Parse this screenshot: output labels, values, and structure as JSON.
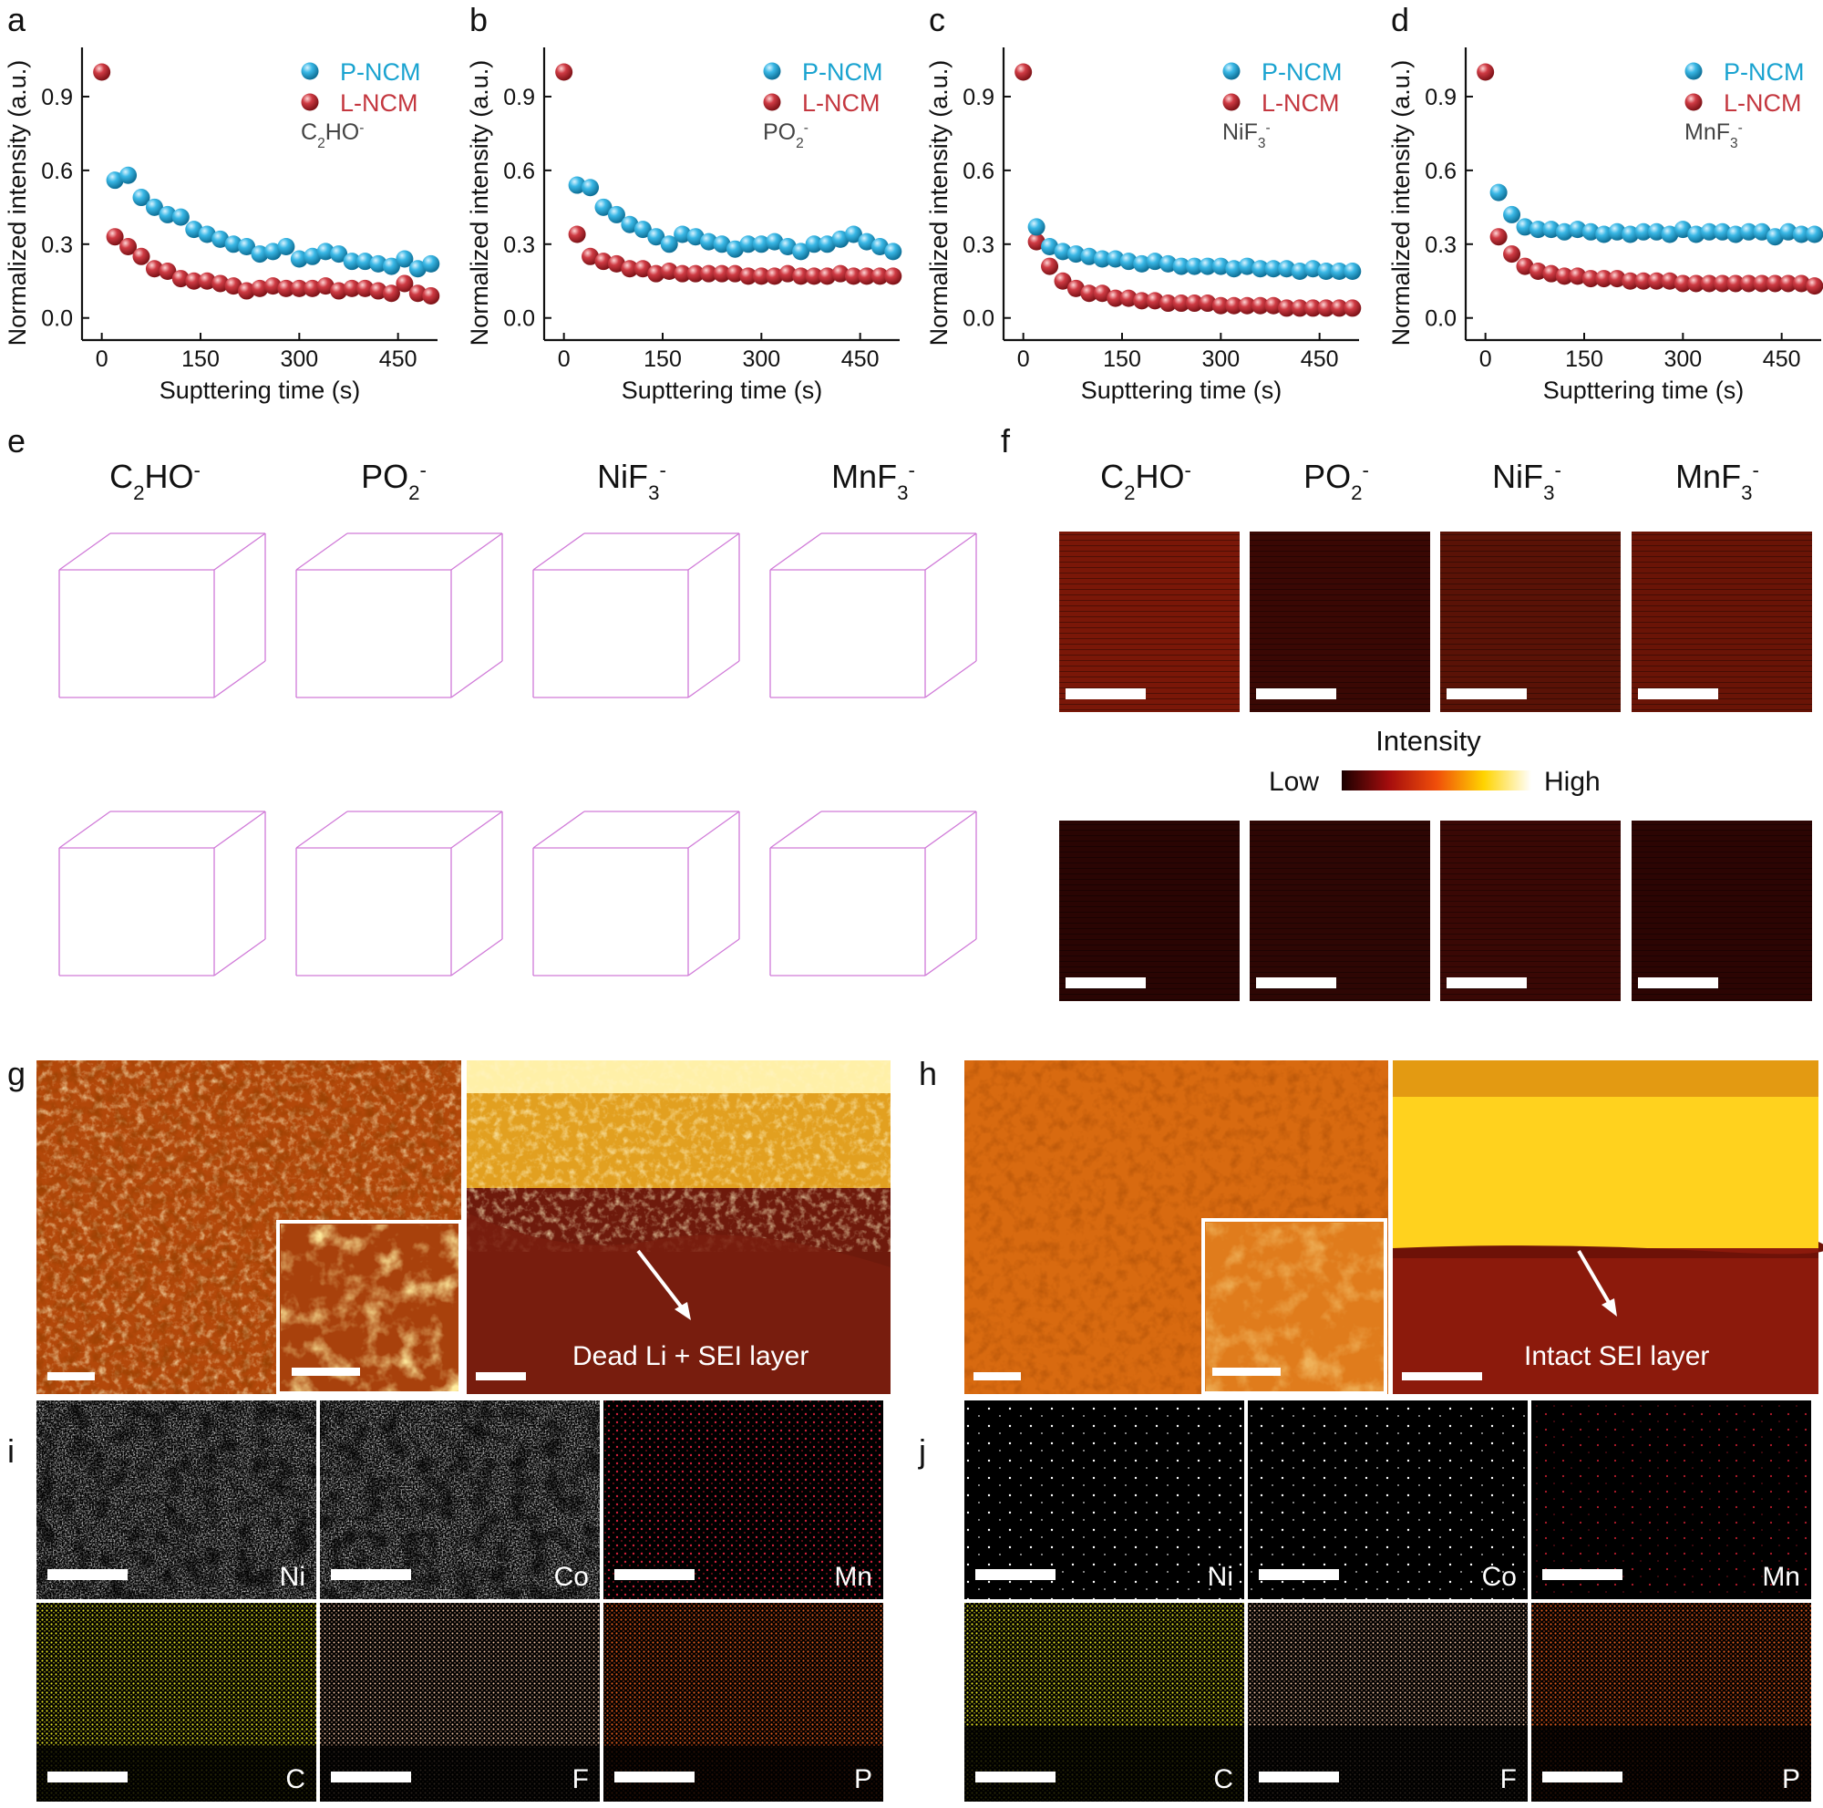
{
  "panel_letters": [
    "a",
    "b",
    "c",
    "d",
    "e",
    "f",
    "g",
    "h",
    "i",
    "j"
  ],
  "colors": {
    "p_ncm": "#1aa3d0",
    "l_ncm": "#c4373f"
  },
  "chart_data": [
    {
      "type": "scatter",
      "panel": "a",
      "ion": "C2HO-",
      "ion_parts": {
        "base": "C",
        "sub": "2",
        "rest": "HO",
        "sup": "-"
      },
      "xlabel": "Supttering time (s)",
      "ylabel": "Normalized intensity (a.u.)",
      "xlim": [
        -30,
        510
      ],
      "ylim": [
        -0.09,
        1.1
      ],
      "xticks": [
        0,
        150,
        300,
        450
      ],
      "xtick_labels": [
        "0",
        "150",
        "300",
        "450"
      ],
      "yticks": [
        0,
        0.3,
        0.6,
        0.9
      ],
      "ytick_labels": [
        "0.0",
        "0.3",
        "0.6",
        "0.9"
      ],
      "legend": [
        "P-NCM",
        "L-NCM"
      ],
      "series": [
        {
          "name": "P-NCM",
          "x": [
            20,
            40,
            60,
            80,
            100,
            120,
            140,
            160,
            180,
            200,
            220,
            240,
            260,
            280,
            300,
            320,
            340,
            360,
            380,
            400,
            420,
            440,
            460,
            480,
            500
          ],
          "y": [
            0.56,
            0.58,
            0.49,
            0.45,
            0.42,
            0.41,
            0.36,
            0.34,
            0.32,
            0.3,
            0.29,
            0.26,
            0.27,
            0.29,
            0.24,
            0.25,
            0.27,
            0.26,
            0.23,
            0.23,
            0.22,
            0.21,
            0.24,
            0.2,
            0.22
          ]
        },
        {
          "name": "L-NCM",
          "x": [
            0,
            20,
            40,
            60,
            80,
            100,
            120,
            140,
            160,
            180,
            200,
            220,
            240,
            260,
            280,
            300,
            320,
            340,
            360,
            380,
            400,
            420,
            440,
            460,
            480,
            500
          ],
          "y": [
            1.0,
            0.33,
            0.29,
            0.25,
            0.2,
            0.19,
            0.16,
            0.15,
            0.15,
            0.14,
            0.13,
            0.11,
            0.12,
            0.13,
            0.12,
            0.12,
            0.12,
            0.13,
            0.11,
            0.12,
            0.12,
            0.11,
            0.1,
            0.14,
            0.1,
            0.09
          ]
        }
      ]
    },
    {
      "type": "scatter",
      "panel": "b",
      "ion": "PO2-",
      "ion_parts": {
        "base": "PO",
        "sub": "2",
        "rest": "",
        "sup": "-"
      },
      "xlabel": "Supttering time (s)",
      "ylabel": "Normalized intensity (a.u.)",
      "xlim": [
        -30,
        510
      ],
      "ylim": [
        -0.09,
        1.1
      ],
      "xticks": [
        0,
        150,
        300,
        450
      ],
      "xtick_labels": [
        "0",
        "150",
        "300",
        "450"
      ],
      "yticks": [
        0,
        0.3,
        0.6,
        0.9
      ],
      "ytick_labels": [
        "0.0",
        "0.3",
        "0.6",
        "0.9"
      ],
      "legend": [
        "P-NCM",
        "L-NCM"
      ],
      "series": [
        {
          "name": "P-NCM",
          "x": [
            20,
            40,
            60,
            80,
            100,
            120,
            140,
            160,
            180,
            200,
            220,
            240,
            260,
            280,
            300,
            320,
            340,
            360,
            380,
            400,
            420,
            440,
            460,
            480,
            500
          ],
          "y": [
            0.54,
            0.53,
            0.45,
            0.42,
            0.38,
            0.36,
            0.33,
            0.3,
            0.34,
            0.33,
            0.31,
            0.3,
            0.28,
            0.3,
            0.3,
            0.31,
            0.29,
            0.27,
            0.3,
            0.3,
            0.32,
            0.34,
            0.31,
            0.29,
            0.27
          ]
        },
        {
          "name": "L-NCM",
          "x": [
            0,
            20,
            40,
            60,
            80,
            100,
            120,
            140,
            160,
            180,
            200,
            220,
            240,
            260,
            280,
            300,
            320,
            340,
            360,
            380,
            400,
            420,
            440,
            460,
            480,
            500
          ],
          "y": [
            1.0,
            0.34,
            0.25,
            0.23,
            0.22,
            0.2,
            0.2,
            0.18,
            0.19,
            0.18,
            0.18,
            0.18,
            0.18,
            0.18,
            0.17,
            0.17,
            0.17,
            0.18,
            0.17,
            0.17,
            0.17,
            0.18,
            0.17,
            0.17,
            0.17,
            0.17
          ]
        }
      ]
    },
    {
      "type": "scatter",
      "panel": "c",
      "ion": "NiF3-",
      "ion_parts": {
        "base": "NiF",
        "sub": "3",
        "rest": "",
        "sup": "-"
      },
      "xlabel": "Supttering time (s)",
      "ylabel": "Normalized intensity (a.u.)",
      "xlim": [
        -30,
        510
      ],
      "ylim": [
        -0.09,
        1.1
      ],
      "xticks": [
        0,
        150,
        300,
        450
      ],
      "xtick_labels": [
        "0",
        "150",
        "300",
        "450"
      ],
      "yticks": [
        0,
        0.3,
        0.6,
        0.9
      ],
      "ytick_labels": [
        "0.0",
        "0.3",
        "0.6",
        "0.9"
      ],
      "legend": [
        "P-NCM",
        "L-NCM"
      ],
      "series": [
        {
          "name": "P-NCM",
          "x": [
            20,
            40,
            60,
            80,
            100,
            120,
            140,
            160,
            180,
            200,
            220,
            240,
            260,
            280,
            300,
            320,
            340,
            360,
            380,
            400,
            420,
            440,
            460,
            480,
            500
          ],
          "y": [
            0.37,
            0.29,
            0.27,
            0.26,
            0.25,
            0.24,
            0.24,
            0.23,
            0.22,
            0.23,
            0.22,
            0.21,
            0.21,
            0.21,
            0.21,
            0.2,
            0.21,
            0.2,
            0.2,
            0.2,
            0.19,
            0.2,
            0.19,
            0.19,
            0.19
          ]
        },
        {
          "name": "L-NCM",
          "x": [
            0,
            20,
            40,
            60,
            80,
            100,
            120,
            140,
            160,
            180,
            200,
            220,
            240,
            260,
            280,
            300,
            320,
            340,
            360,
            380,
            400,
            420,
            440,
            460,
            480,
            500
          ],
          "y": [
            1.0,
            0.31,
            0.21,
            0.15,
            0.12,
            0.1,
            0.1,
            0.08,
            0.08,
            0.07,
            0.07,
            0.06,
            0.06,
            0.06,
            0.06,
            0.05,
            0.05,
            0.05,
            0.05,
            0.05,
            0.04,
            0.04,
            0.04,
            0.04,
            0.04,
            0.04
          ]
        }
      ]
    },
    {
      "type": "scatter",
      "panel": "d",
      "ion": "MnF3-",
      "ion_parts": {
        "base": "MnF",
        "sub": "3",
        "rest": "",
        "sup": "-"
      },
      "xlabel": "Supttering time (s)",
      "ylabel": "Normalized intensity (a.u.)",
      "xlim": [
        -30,
        510
      ],
      "ylim": [
        -0.09,
        1.1
      ],
      "xticks": [
        0,
        150,
        300,
        450
      ],
      "xtick_labels": [
        "0",
        "150",
        "300",
        "450"
      ],
      "yticks": [
        0,
        0.3,
        0.6,
        0.9
      ],
      "ytick_labels": [
        "0.0",
        "0.3",
        "0.6",
        "0.9"
      ],
      "legend": [
        "P-NCM",
        "L-NCM"
      ],
      "series": [
        {
          "name": "P-NCM",
          "x": [
            20,
            40,
            60,
            80,
            100,
            120,
            140,
            160,
            180,
            200,
            220,
            240,
            260,
            280,
            300,
            320,
            340,
            360,
            380,
            400,
            420,
            440,
            460,
            480,
            500
          ],
          "y": [
            0.51,
            0.42,
            0.37,
            0.36,
            0.36,
            0.35,
            0.36,
            0.35,
            0.34,
            0.35,
            0.34,
            0.35,
            0.35,
            0.34,
            0.36,
            0.34,
            0.35,
            0.35,
            0.34,
            0.35,
            0.35,
            0.33,
            0.35,
            0.34,
            0.34
          ]
        },
        {
          "name": "L-NCM",
          "x": [
            0,
            20,
            40,
            60,
            80,
            100,
            120,
            140,
            160,
            180,
            200,
            220,
            240,
            260,
            280,
            300,
            320,
            340,
            360,
            380,
            400,
            420,
            440,
            460,
            480,
            500
          ],
          "y": [
            1.0,
            0.33,
            0.26,
            0.21,
            0.19,
            0.18,
            0.17,
            0.17,
            0.16,
            0.16,
            0.16,
            0.15,
            0.15,
            0.15,
            0.15,
            0.14,
            0.14,
            0.14,
            0.14,
            0.14,
            0.14,
            0.14,
            0.14,
            0.14,
            0.14,
            0.13
          ]
        }
      ]
    }
  ],
  "panel_e": {
    "labels": [
      {
        "base": "C",
        "sub": "2",
        "rest": "HO",
        "sup": "-"
      },
      {
        "base": "PO",
        "sub": "2",
        "rest": "",
        "sup": "-"
      },
      {
        "base": "NiF",
        "sub": "3",
        "rest": "",
        "sup": "-"
      },
      {
        "base": "MnF",
        "sub": "3",
        "rest": "",
        "sup": "-"
      }
    ],
    "colors": [
      "#7a0d12",
      "#1f2fd0",
      "#c8b22a",
      "#5a0a6e"
    ]
  },
  "panel_f": {
    "labels": [
      {
        "base": "C",
        "sub": "2",
        "rest": "HO",
        "sup": "-"
      },
      {
        "base": "PO",
        "sub": "2",
        "rest": "",
        "sup": "-"
      },
      {
        "base": "NiF",
        "sub": "3",
        "rest": "",
        "sup": "-"
      },
      {
        "base": "MnF",
        "sub": "3",
        "rest": "",
        "sup": "-"
      }
    ],
    "colorbar_title": "Intensity",
    "colorbar_low": "Low",
    "colorbar_high": "High"
  },
  "panel_g": {
    "annotation": "Dead Li + SEI layer"
  },
  "panel_h": {
    "annotation": "Intact SEI layer"
  },
  "panel_i": {
    "elements": [
      "Ni",
      "Co",
      "Mn",
      "C",
      "F",
      "P"
    ]
  },
  "panel_j": {
    "elements": [
      "Ni",
      "Co",
      "Mn",
      "C",
      "F",
      "P"
    ]
  },
  "eds_colors": {
    "Ni": "#c8c8c8",
    "Co": "#c8c8c8",
    "Mn": "#d0203a",
    "C": "#e2e020",
    "F": "#f2c2a0",
    "P": "#e05a1c"
  }
}
